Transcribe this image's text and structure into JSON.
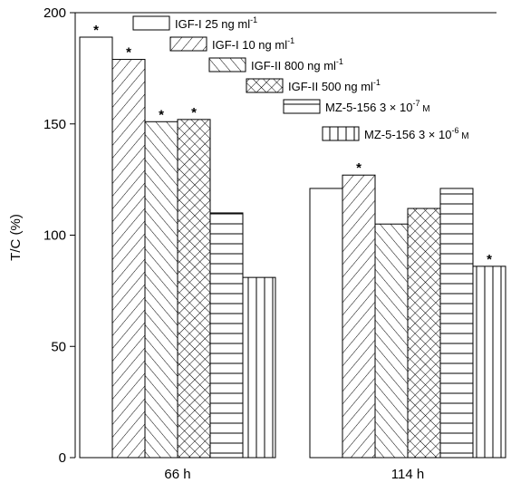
{
  "chart_data": {
    "type": "bar",
    "title": "",
    "xlabel": "",
    "ylabel": "T/C (%)",
    "ylim": [
      0,
      200
    ],
    "yticks": [
      0,
      50,
      100,
      150,
      200
    ],
    "grid": false,
    "legend_position": "top-right, inside plot",
    "categories": [
      "66 h",
      "114 h"
    ],
    "series": [
      {
        "name": "IGF-I 25 ng ml",
        "sup": "-1",
        "pattern": "open",
        "values": [
          189,
          121
        ],
        "significant": [
          true,
          false
        ]
      },
      {
        "name": "IGF-I 10 ng ml",
        "sup": "-1",
        "pattern": "diag-right",
        "values": [
          179,
          127
        ],
        "significant": [
          true,
          true
        ]
      },
      {
        "name": "IGF-II 800 ng ml",
        "sup": "-1",
        "pattern": "diag-left",
        "values": [
          151,
          105
        ],
        "significant": [
          true,
          false
        ]
      },
      {
        "name": "IGF-II 500 ng ml",
        "sup": "-1",
        "pattern": "crosshatch",
        "values": [
          152,
          112
        ],
        "significant": [
          true,
          false
        ]
      },
      {
        "name": "MZ-5-156 3 × 10",
        "sup": "-7",
        "suffix": " M",
        "pattern": "horizontal",
        "values": [
          110,
          121
        ],
        "significant": [
          false,
          false
        ]
      },
      {
        "name": "MZ-5-156 3 × 10",
        "sup": "-6",
        "suffix": " M",
        "pattern": "vertical",
        "values": [
          81,
          86
        ],
        "significant": [
          false,
          true
        ]
      }
    ],
    "significance_marker": "*"
  }
}
